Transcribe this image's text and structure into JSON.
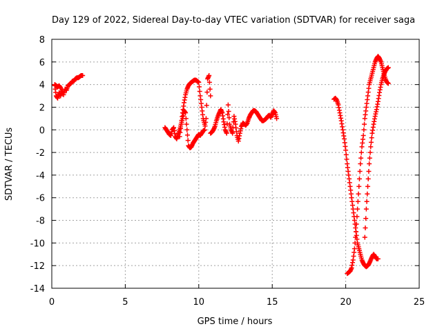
{
  "chart_data": {
    "type": "scatter",
    "title": "Day 129 of 2022, Sidereal Day-to-day VTEC variation (SDTVAR) for receiver saga",
    "xlabel": "GPS time / hours",
    "ylabel": "SDTVAR / TECUs",
    "xlim": [
      0,
      25
    ],
    "ylim": [
      -14,
      8
    ],
    "xticks": [
      "0",
      "5",
      "10",
      "15",
      "20",
      "25"
    ],
    "yticks": [
      "8",
      "6",
      "4",
      "2",
      "0",
      "-2",
      "-4",
      "-6",
      "-8",
      "-10",
      "-12",
      "-14"
    ],
    "grid": true,
    "marker": "+",
    "series": [
      {
        "name": "SDTVAR",
        "color": "#ff0000",
        "segments": [
          {
            "x": [
              0.2,
              0.3,
              0.4,
              0.5,
              0.6,
              0.7,
              0.8,
              0.9,
              1.0,
              1.1,
              1.2,
              1.3,
              1.4,
              1.5,
              1.6,
              1.7,
              1.8,
              1.9,
              2.0,
              2.1
            ],
            "y": [
              3.9,
              3.0,
              2.8,
              3.3,
              3.0,
              3.6,
              3.1,
              3.6,
              3.5,
              3.9,
              4.0,
              4.1,
              4.3,
              4.3,
              4.5,
              4.6,
              4.6,
              4.7,
              4.8,
              4.8
            ]
          },
          {
            "x": [
              0.2,
              0.3,
              0.4,
              0.5,
              0.6
            ],
            "y": [
              4.0,
              3.9,
              3.8,
              3.9,
              3.7
            ]
          },
          {
            "x": [
              7.7,
              7.8,
              7.9,
              8.0,
              8.1,
              8.2,
              8.3,
              8.4,
              8.5,
              8.6,
              8.7,
              8.8,
              8.9,
              9.0,
              9.1,
              9.2,
              9.3,
              9.4,
              9.5,
              9.6,
              9.7,
              9.8,
              9.9,
              10.0,
              10.1,
              10.2,
              10.3,
              10.4,
              10.5,
              10.6,
              10.7,
              10.8
            ],
            "y": [
              0.2,
              0.0,
              -0.2,
              -0.4,
              -0.5,
              0.0,
              0.2,
              -0.6,
              -0.8,
              -0.4,
              0.0,
              0.5,
              1.0,
              1.7,
              1.5,
              0.0,
              -1.4,
              -1.6,
              -1.5,
              -1.2,
              -1.0,
              -0.8,
              -0.6,
              -0.4,
              -0.5,
              -0.3,
              -0.1,
              0.0,
              1.0,
              4.5,
              4.8,
              3.0
            ]
          },
          {
            "x": [
              8.7,
              8.8,
              8.9,
              9.0,
              9.1,
              9.2,
              9.3,
              9.4,
              9.5,
              9.6,
              9.7,
              9.8,
              9.9,
              10.0,
              10.1,
              10.2,
              10.3,
              10.4
            ],
            "y": [
              -0.6,
              0.5,
              1.5,
              2.4,
              3.1,
              3.6,
              3.9,
              4.1,
              4.2,
              4.3,
              4.4,
              4.4,
              4.3,
              4.2,
              3.0,
              2.0,
              1.0,
              0.5
            ]
          },
          {
            "x": [
              10.8,
              10.9,
              11.0,
              11.1,
              11.2,
              11.3,
              11.4,
              11.5,
              11.6,
              11.7,
              11.8,
              11.9,
              12.0,
              12.1,
              12.2,
              12.3,
              12.4,
              12.5,
              12.6,
              12.7,
              12.8,
              12.9,
              13.0,
              13.1,
              13.2,
              13.3,
              13.4,
              13.5,
              13.6,
              13.7,
              13.8,
              13.9,
              14.0,
              14.1,
              14.2,
              14.3,
              14.4,
              14.5,
              14.6,
              14.7,
              14.8,
              14.9,
              15.0,
              15.1,
              15.2,
              15.3
            ],
            "y": [
              -0.3,
              -0.2,
              0.0,
              0.3,
              0.8,
              1.2,
              1.5,
              1.8,
              1.5,
              0.7,
              0.0,
              -0.3,
              2.2,
              0.5,
              0.0,
              -0.3,
              1.2,
              0.5,
              -0.5,
              -1.0,
              -0.3,
              0.3,
              0.6,
              0.5,
              0.4,
              0.6,
              1.0,
              1.3,
              1.5,
              1.7,
              1.7,
              1.6,
              1.4,
              1.2,
              1.0,
              0.8,
              0.8,
              0.9,
              1.0,
              1.2,
              1.3,
              1.1,
              1.4,
              1.7,
              1.5,
              1.0
            ]
          },
          {
            "x": [
              19.2,
              19.3,
              19.4,
              19.5,
              19.6,
              19.7,
              19.8,
              19.9,
              20.0,
              20.1,
              20.2,
              20.3,
              20.4,
              20.5,
              20.6,
              20.7,
              20.8,
              20.9,
              21.0,
              21.1,
              21.2,
              21.3,
              21.4,
              21.5,
              21.6,
              21.7,
              21.8,
              21.9,
              22.0,
              22.1,
              22.2
            ],
            "y": [
              2.7,
              2.8,
              2.6,
              2.2,
              1.5,
              0.8,
              0.0,
              -0.8,
              -1.8,
              -3.0,
              -4.0,
              -5.0,
              -6.0,
              -7.0,
              -8.0,
              -9.0,
              -10.0,
              -10.5,
              -11.0,
              -11.5,
              -11.8,
              -12.0,
              -12.1,
              -12.0,
              -11.8,
              -11.5,
              -11.2,
              -11.0,
              -11.2,
              -11.4,
              -11.4
            ]
          },
          {
            "x": [
              20.1,
              20.2,
              20.3,
              20.4,
              20.5,
              20.6,
              20.7,
              20.8,
              20.9,
              21.0,
              21.1,
              21.2,
              21.3,
              21.4,
              21.5,
              21.6,
              21.7,
              21.8,
              21.9,
              22.0,
              22.1,
              22.2,
              22.3,
              22.4,
              22.5,
              22.6,
              22.7,
              22.8,
              22.9
            ],
            "y": [
              -12.7,
              -12.6,
              -12.5,
              -12.2,
              -11.5,
              -10.5,
              -9.0,
              -7.0,
              -5.0,
              -3.0,
              -1.5,
              -0.5,
              1.0,
              2.0,
              3.0,
              4.0,
              4.5,
              5.0,
              5.5,
              6.0,
              6.3,
              6.5,
              6.3,
              6.0,
              5.5,
              5.0,
              4.5,
              4.2,
              4.1
            ]
          },
          {
            "x": [
              21.3,
              21.4,
              21.5,
              21.6,
              21.7,
              21.8,
              21.9,
              22.0,
              22.1,
              22.2,
              22.3,
              22.4,
              22.5,
              22.6,
              22.7,
              22.8,
              22.9
            ],
            "y": [
              -9.5,
              -7.0,
              -5.0,
              -3.0,
              -1.5,
              -0.3,
              0.5,
              1.2,
              1.8,
              2.5,
              3.3,
              4.0,
              4.5,
              4.9,
              5.2,
              5.4,
              5.5
            ]
          }
        ]
      }
    ]
  }
}
